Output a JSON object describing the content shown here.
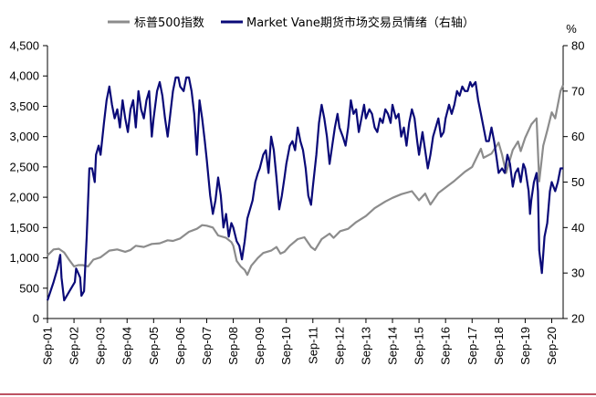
{
  "chart_data": {
    "type": "line",
    "title": "",
    "legend": {
      "position": "top-center",
      "entries": [
        "标普500指数",
        "Market Vane期货市场交易员情绪（右轴）"
      ]
    },
    "x_labels": [
      "Sep-01",
      "Sep-02",
      "Sep-03",
      "Sep-04",
      "Sep-05",
      "Sep-06",
      "Sep-07",
      "Sep-08",
      "Sep-09",
      "Sep-10",
      "Sep-11",
      "Sep-12",
      "Sep-13",
      "Sep-14",
      "Sep-15",
      "Sep-16",
      "Sep-17",
      "Sep-18",
      "Sep-19",
      "Sep-20"
    ],
    "x_range": [
      2001.67,
      2021.1
    ],
    "left_axis": {
      "unit": "",
      "range": [
        0,
        4500
      ],
      "ticks": [
        "0",
        "500",
        "1,000",
        "1,500",
        "2,000",
        "2,500",
        "3,000",
        "3,500",
        "4,000",
        "4,500"
      ]
    },
    "right_axis": {
      "unit": "%",
      "range": [
        20,
        80
      ],
      "ticks": [
        "20",
        "30",
        "40",
        "50",
        "60",
        "70",
        "80"
      ]
    },
    "series": [
      {
        "name": "标普500指数",
        "axis": "left",
        "color": "#8c8c8c",
        "points": [
          [
            2001.67,
            1040
          ],
          [
            2001.9,
            1140
          ],
          [
            2002.1,
            1150
          ],
          [
            2002.3,
            1090
          ],
          [
            2002.5,
            960
          ],
          [
            2002.67,
            860
          ],
          [
            2002.83,
            880
          ],
          [
            2003.0,
            880
          ],
          [
            2003.2,
            860
          ],
          [
            2003.4,
            970
          ],
          [
            2003.67,
            1010
          ],
          [
            2004.0,
            1120
          ],
          [
            2004.3,
            1140
          ],
          [
            2004.6,
            1100
          ],
          [
            2004.8,
            1130
          ],
          [
            2005.0,
            1200
          ],
          [
            2005.3,
            1180
          ],
          [
            2005.6,
            1230
          ],
          [
            2005.9,
            1240
          ],
          [
            2006.2,
            1290
          ],
          [
            2006.4,
            1280
          ],
          [
            2006.67,
            1320
          ],
          [
            2007.0,
            1430
          ],
          [
            2007.3,
            1480
          ],
          [
            2007.5,
            1540
          ],
          [
            2007.67,
            1530
          ],
          [
            2007.9,
            1500
          ],
          [
            2008.1,
            1370
          ],
          [
            2008.4,
            1330
          ],
          [
            2008.6,
            1260
          ],
          [
            2008.67,
            1200
          ],
          [
            2008.8,
            950
          ],
          [
            2008.95,
            860
          ],
          [
            2009.1,
            800
          ],
          [
            2009.2,
            720
          ],
          [
            2009.35,
            870
          ],
          [
            2009.6,
            1000
          ],
          [
            2009.8,
            1080
          ],
          [
            2010.1,
            1120
          ],
          [
            2010.3,
            1180
          ],
          [
            2010.45,
            1070
          ],
          [
            2010.6,
            1100
          ],
          [
            2010.8,
            1200
          ],
          [
            2011.1,
            1310
          ],
          [
            2011.35,
            1340
          ],
          [
            2011.6,
            1180
          ],
          [
            2011.75,
            1130
          ],
          [
            2012.0,
            1310
          ],
          [
            2012.3,
            1400
          ],
          [
            2012.45,
            1330
          ],
          [
            2012.7,
            1440
          ],
          [
            2013.0,
            1480
          ],
          [
            2013.3,
            1590
          ],
          [
            2013.67,
            1690
          ],
          [
            2014.0,
            1820
          ],
          [
            2014.4,
            1930
          ],
          [
            2014.67,
            1990
          ],
          [
            2015.0,
            2050
          ],
          [
            2015.4,
            2100
          ],
          [
            2015.67,
            1950
          ],
          [
            2015.9,
            2060
          ],
          [
            2016.1,
            1880
          ],
          [
            2016.4,
            2070
          ],
          [
            2016.67,
            2160
          ],
          [
            2017.0,
            2270
          ],
          [
            2017.4,
            2420
          ],
          [
            2017.67,
            2500
          ],
          [
            2018.0,
            2800
          ],
          [
            2018.1,
            2650
          ],
          [
            2018.4,
            2720
          ],
          [
            2018.67,
            2900
          ],
          [
            2018.8,
            2700
          ],
          [
            2018.95,
            2400
          ],
          [
            2019.2,
            2780
          ],
          [
            2019.4,
            2920
          ],
          [
            2019.5,
            2760
          ],
          [
            2019.67,
            2980
          ],
          [
            2019.9,
            3200
          ],
          [
            2020.1,
            3300
          ],
          [
            2020.2,
            2260
          ],
          [
            2020.35,
            2850
          ],
          [
            2020.5,
            3100
          ],
          [
            2020.67,
            3400
          ],
          [
            2020.8,
            3300
          ],
          [
            2021.0,
            3750
          ],
          [
            2021.1,
            3850
          ]
        ]
      },
      {
        "name": "Market Vane期货市场交易员情绪（右轴）",
        "axis": "right",
        "color": "#0a0a78",
        "points": [
          [
            2001.67,
            24
          ],
          [
            2001.9,
            28
          ],
          [
            2002.05,
            31
          ],
          [
            2002.15,
            34
          ],
          [
            2002.2,
            29
          ],
          [
            2002.3,
            24
          ],
          [
            2002.5,
            26
          ],
          [
            2002.7,
            28
          ],
          [
            2002.75,
            31
          ],
          [
            2002.9,
            29
          ],
          [
            2002.95,
            25
          ],
          [
            2003.05,
            26
          ],
          [
            2003.15,
            38
          ],
          [
            2003.25,
            53
          ],
          [
            2003.35,
            53
          ],
          [
            2003.45,
            50
          ],
          [
            2003.5,
            56
          ],
          [
            2003.6,
            58
          ],
          [
            2003.67,
            56
          ],
          [
            2003.8,
            63
          ],
          [
            2003.9,
            68
          ],
          [
            2004.0,
            71
          ],
          [
            2004.1,
            67
          ],
          [
            2004.2,
            64
          ],
          [
            2004.3,
            66
          ],
          [
            2004.4,
            62
          ],
          [
            2004.5,
            68
          ],
          [
            2004.6,
            64
          ],
          [
            2004.7,
            61
          ],
          [
            2004.8,
            66
          ],
          [
            2004.9,
            68
          ],
          [
            2005.0,
            62
          ],
          [
            2005.1,
            70
          ],
          [
            2005.2,
            66
          ],
          [
            2005.3,
            64
          ],
          [
            2005.4,
            68
          ],
          [
            2005.5,
            70
          ],
          [
            2005.6,
            60
          ],
          [
            2005.67,
            64
          ],
          [
            2005.8,
            70
          ],
          [
            2005.9,
            72
          ],
          [
            2006.0,
            69
          ],
          [
            2006.1,
            64
          ],
          [
            2006.2,
            60
          ],
          [
            2006.3,
            65
          ],
          [
            2006.4,
            70
          ],
          [
            2006.5,
            73
          ],
          [
            2006.6,
            73
          ],
          [
            2006.67,
            71
          ],
          [
            2006.8,
            70
          ],
          [
            2006.9,
            73
          ],
          [
            2007.0,
            73
          ],
          [
            2007.1,
            70
          ],
          [
            2007.2,
            65
          ],
          [
            2007.3,
            56
          ],
          [
            2007.4,
            68
          ],
          [
            2007.5,
            64
          ],
          [
            2007.6,
            59
          ],
          [
            2007.67,
            55
          ],
          [
            2007.8,
            47
          ],
          [
            2007.9,
            43
          ],
          [
            2008.0,
            46
          ],
          [
            2008.1,
            51
          ],
          [
            2008.2,
            47
          ],
          [
            2008.3,
            40
          ],
          [
            2008.4,
            43
          ],
          [
            2008.5,
            38
          ],
          [
            2008.6,
            41
          ],
          [
            2008.67,
            40
          ],
          [
            2008.8,
            37
          ],
          [
            2008.9,
            36
          ],
          [
            2009.0,
            33
          ],
          [
            2009.1,
            37
          ],
          [
            2009.2,
            42
          ],
          [
            2009.3,
            44
          ],
          [
            2009.4,
            46
          ],
          [
            2009.5,
            50
          ],
          [
            2009.6,
            52
          ],
          [
            2009.67,
            53
          ],
          [
            2009.8,
            56
          ],
          [
            2009.9,
            57
          ],
          [
            2010.0,
            52
          ],
          [
            2010.1,
            60
          ],
          [
            2010.2,
            57
          ],
          [
            2010.3,
            51
          ],
          [
            2010.4,
            44
          ],
          [
            2010.5,
            47
          ],
          [
            2010.6,
            51
          ],
          [
            2010.67,
            54
          ],
          [
            2010.8,
            58
          ],
          [
            2010.9,
            59
          ],
          [
            2011.0,
            57
          ],
          [
            2011.1,
            62
          ],
          [
            2011.2,
            59
          ],
          [
            2011.3,
            57
          ],
          [
            2011.4,
            53
          ],
          [
            2011.5,
            47
          ],
          [
            2011.6,
            45
          ],
          [
            2011.67,
            49
          ],
          [
            2011.8,
            56
          ],
          [
            2011.9,
            63
          ],
          [
            2012.0,
            67
          ],
          [
            2012.1,
            64
          ],
          [
            2012.2,
            60
          ],
          [
            2012.3,
            54
          ],
          [
            2012.4,
            58
          ],
          [
            2012.5,
            62
          ],
          [
            2012.6,
            65
          ],
          [
            2012.67,
            62
          ],
          [
            2012.8,
            60
          ],
          [
            2012.9,
            58
          ],
          [
            2013.0,
            62
          ],
          [
            2013.1,
            68
          ],
          [
            2013.2,
            65
          ],
          [
            2013.3,
            66
          ],
          [
            2013.4,
            61
          ],
          [
            2013.5,
            64
          ],
          [
            2013.6,
            67
          ],
          [
            2013.67,
            64
          ],
          [
            2013.8,
            66
          ],
          [
            2013.9,
            65
          ],
          [
            2014.0,
            62
          ],
          [
            2014.1,
            61
          ],
          [
            2014.2,
            64
          ],
          [
            2014.3,
            63
          ],
          [
            2014.4,
            66
          ],
          [
            2014.5,
            65
          ],
          [
            2014.6,
            63
          ],
          [
            2014.67,
            67
          ],
          [
            2014.8,
            64
          ],
          [
            2014.9,
            65
          ],
          [
            2015.0,
            60
          ],
          [
            2015.1,
            62
          ],
          [
            2015.2,
            58
          ],
          [
            2015.3,
            63
          ],
          [
            2015.4,
            66
          ],
          [
            2015.5,
            64
          ],
          [
            2015.6,
            59
          ],
          [
            2015.67,
            56
          ],
          [
            2015.8,
            61
          ],
          [
            2015.9,
            57
          ],
          [
            2016.0,
            53
          ],
          [
            2016.1,
            56
          ],
          [
            2016.2,
            60
          ],
          [
            2016.3,
            62
          ],
          [
            2016.4,
            64
          ],
          [
            2016.5,
            60
          ],
          [
            2016.6,
            61
          ],
          [
            2016.67,
            64
          ],
          [
            2016.8,
            67
          ],
          [
            2016.9,
            65
          ],
          [
            2017.0,
            67
          ],
          [
            2017.1,
            70
          ],
          [
            2017.2,
            69
          ],
          [
            2017.3,
            71
          ],
          [
            2017.4,
            70
          ],
          [
            2017.5,
            70
          ],
          [
            2017.6,
            72
          ],
          [
            2017.67,
            71
          ],
          [
            2017.8,
            72
          ],
          [
            2017.9,
            68
          ],
          [
            2018.0,
            65
          ],
          [
            2018.1,
            62
          ],
          [
            2018.2,
            59
          ],
          [
            2018.3,
            59
          ],
          [
            2018.4,
            62
          ],
          [
            2018.5,
            59
          ],
          [
            2018.6,
            55
          ],
          [
            2018.67,
            52
          ],
          [
            2018.8,
            53
          ],
          [
            2018.9,
            52
          ],
          [
            2019.0,
            56
          ],
          [
            2019.1,
            54
          ],
          [
            2019.2,
            49
          ],
          [
            2019.3,
            52
          ],
          [
            2019.4,
            53
          ],
          [
            2019.5,
            50
          ],
          [
            2019.6,
            54
          ],
          [
            2019.67,
            53
          ],
          [
            2019.8,
            48
          ],
          [
            2019.85,
            43
          ],
          [
            2019.9,
            46
          ],
          [
            2020.0,
            50
          ],
          [
            2020.1,
            52
          ],
          [
            2020.15,
            48
          ],
          [
            2020.2,
            35
          ],
          [
            2020.3,
            30
          ],
          [
            2020.4,
            38
          ],
          [
            2020.5,
            41
          ],
          [
            2020.6,
            48
          ],
          [
            2020.67,
            50
          ],
          [
            2020.8,
            48
          ],
          [
            2020.9,
            50
          ],
          [
            2021.0,
            53
          ],
          [
            2021.1,
            53
          ]
        ]
      }
    ]
  }
}
